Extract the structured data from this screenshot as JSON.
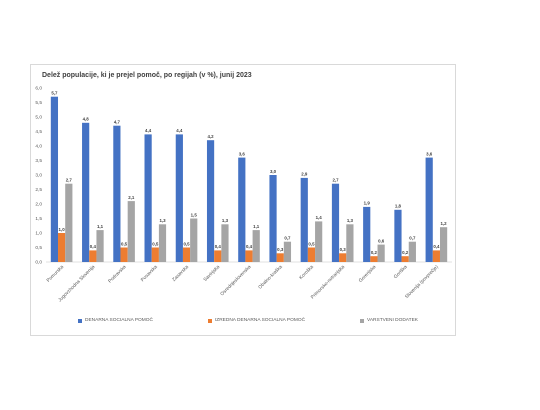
{
  "chart_data": {
    "type": "bar",
    "title": "Delež populacije, ki je prejel pomoč, po regijah (v %), junij 2023",
    "categories": [
      "Pomurska",
      "Jugovzhodna Slovenija",
      "Podravska",
      "Posavska",
      "Zasavska",
      "Savinjska",
      "Osrednjeslovenska",
      "Obalno-kraška",
      "Koroška",
      "Primorsko-notranjska",
      "Gorenjska",
      "Goriška",
      "Slovenija (povprečje)"
    ],
    "series": [
      {
        "name": "DENARNA SOCIALNA POMOČ",
        "color": "#4472c4",
        "values": [
          5.7,
          4.8,
          4.7,
          4.4,
          4.4,
          4.2,
          3.6,
          3.0,
          2.9,
          2.7,
          1.9,
          1.8,
          3.6
        ]
      },
      {
        "name": "IZREDNA DENARNA SOCIALNA POMOČ",
        "color": "#ed7d31",
        "values": [
          1.0,
          0.4,
          0.5,
          0.5,
          0.5,
          0.4,
          0.4,
          0.3,
          0.5,
          0.3,
          0.2,
          0.2,
          0.4
        ]
      },
      {
        "name": "VARSTVENI DODATEK",
        "color": "#a5a5a5",
        "values": [
          2.7,
          1.1,
          2.1,
          1.3,
          1.5,
          1.3,
          1.1,
          0.7,
          1.4,
          1.3,
          0.6,
          0.7,
          1.2
        ]
      }
    ],
    "data_labels": [
      [
        "5,7",
        "4,8",
        "4,7",
        "4,4",
        "4,4",
        "4,2",
        "3,6",
        "3,0",
        "2,9",
        "2,7",
        "1,9",
        "1,8",
        "3,6"
      ],
      [
        "1,0",
        "0,4",
        "0,5",
        "0,5",
        "0,5",
        "0,4",
        "0,4",
        "0,3",
        "0,5",
        "0,3",
        "0,2",
        "0,2",
        "0,4"
      ],
      [
        "2,7",
        "1,1",
        "2,1",
        "1,3",
        "1,5",
        "1,3",
        "1,1",
        "0,7",
        "1,4",
        "1,3",
        "0,6",
        "0,7",
        "1,2"
      ]
    ],
    "y_ticks": [
      "0,0",
      "0,5",
      "1,0",
      "1,5",
      "2,0",
      "2,5",
      "3,0",
      "3,5",
      "4,0",
      "4,5",
      "5,0",
      "5,5",
      "6,0"
    ],
    "ylim": [
      0,
      6
    ],
    "grid": false,
    "legend": "bottom",
    "xlabel": "",
    "ylabel": ""
  }
}
